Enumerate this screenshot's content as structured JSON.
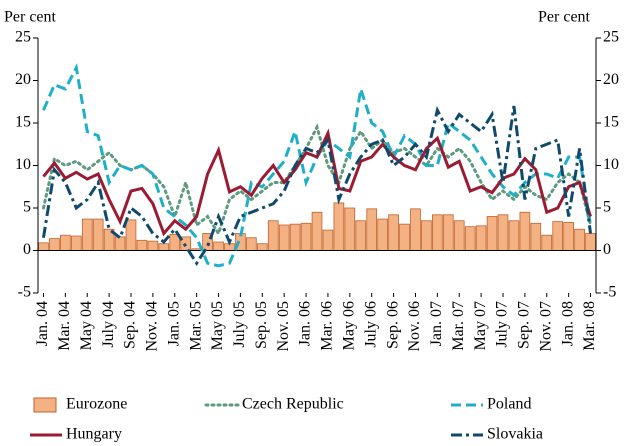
{
  "chart_data": {
    "type": "combo",
    "y_label": "Per cent",
    "y2_label": "Per cent",
    "categories": [
      "Jan. 04",
      null,
      "Mar. 04",
      null,
      "May 04",
      null,
      "July 04",
      null,
      "Sep. 04",
      null,
      "Nov. 04",
      null,
      "Jan. 05",
      null,
      "Mar. 05",
      null,
      "May 05",
      null,
      "July 05",
      null,
      "Sep. 05",
      null,
      "Nov. 05",
      null,
      "Jan. 06",
      null,
      "Mar. 06",
      null,
      "May 06",
      null,
      "July 06",
      null,
      "Sep. 06",
      null,
      "Nov. 06",
      null,
      "Jan. 07",
      null,
      "Mar. 07",
      null,
      "May 07",
      null,
      "July 07",
      null,
      "Sep. 07",
      null,
      "Nov. 07",
      null,
      "Jan. 08",
      null,
      "Mar. 08"
    ],
    "ylim": [
      -5,
      25
    ],
    "yticks": [
      -5,
      0,
      5,
      10,
      15,
      20,
      25
    ],
    "y2lim": [
      -5,
      25
    ],
    "y2ticks": [
      -5,
      0,
      5,
      10,
      15,
      20,
      25
    ],
    "series": [
      {
        "name": "Eurozone",
        "type": "bar",
        "color": "#f4b183",
        "edge_color": "#c0622a",
        "values": [
          0.9,
          1.4,
          1.8,
          1.7,
          3.7,
          3.7,
          2.5,
          1.6,
          3.6,
          1.2,
          1.1,
          0.8,
          1.9,
          1.6,
          0.2,
          2.0,
          1.0,
          0.8,
          2.0,
          1.5,
          0.8,
          3.5,
          3.0,
          3.1,
          3.2,
          4.5,
          2.4,
          5.6,
          5.0,
          3.5,
          4.9,
          3.7,
          4.2,
          3.1,
          4.9,
          3.5,
          4.2,
          4.2,
          3.5,
          2.8,
          2.9,
          4.0,
          4.2,
          3.5,
          4.5,
          3.2,
          1.8,
          3.4,
          3.3,
          2.5,
          2.0
        ]
      },
      {
        "name": "Czech Republic",
        "type": "line",
        "style": "dotted",
        "color": "#5e9a7e",
        "values": [
          5,
          10.8,
          10,
          10.5,
          9.5,
          10.5,
          11.5,
          10,
          9.5,
          10,
          9,
          7.5,
          4,
          8,
          3,
          4,
          2,
          6,
          7,
          6,
          7,
          8,
          8,
          10,
          12,
          14.5,
          10,
          8,
          12,
          14,
          12,
          13,
          11.5,
          12,
          11,
          10,
          12,
          11,
          12,
          10.5,
          8,
          6,
          7,
          6,
          7.5,
          6.5,
          6,
          8,
          9,
          8,
          3
        ]
      },
      {
        "name": "Poland",
        "type": "line",
        "style": "dashed",
        "color": "#1eb0c9",
        "values": [
          16.5,
          19.5,
          19,
          21.5,
          14,
          13.5,
          8,
          10,
          9.5,
          10,
          9,
          5,
          4,
          3,
          1.5,
          -1.5,
          -1.8,
          -1.5,
          1.5,
          8,
          7.5,
          9,
          10.5,
          14,
          8,
          11,
          13,
          12,
          11,
          19,
          15,
          14,
          11,
          13.5,
          12.5,
          10,
          10,
          15,
          14,
          13,
          11,
          9,
          7.5,
          6.5,
          8,
          9,
          9,
          8.5,
          11,
          11,
          3
        ]
      },
      {
        "name": "Hungary",
        "type": "line",
        "style": "solid",
        "color": "#9b1b32",
        "values": [
          8.7,
          10.3,
          8.5,
          9.2,
          8.4,
          9.0,
          6.0,
          3.4,
          7.0,
          7.3,
          5.5,
          2.0,
          3.5,
          2.5,
          4.0,
          9.0,
          11.8,
          6.9,
          7.5,
          6.5,
          8.5,
          10.0,
          8.0,
          9.5,
          11.5,
          11.0,
          13.8,
          7.3,
          7.0,
          10.5,
          11.0,
          12.5,
          11.0,
          10.0,
          9.5,
          12.0,
          13.2,
          9.8,
          10.5,
          7.0,
          7.5,
          6.8,
          8.5,
          9.0,
          10.8,
          9.5,
          4.5,
          5.0,
          7.5,
          8.0,
          4.0
        ]
      },
      {
        "name": "Slovakia",
        "type": "line",
        "style": "dashdot",
        "color": "#0f4a6c",
        "values": [
          1.5,
          9.5,
          8,
          5,
          6,
          8,
          2.5,
          1.5,
          5,
          4,
          2,
          1,
          2.5,
          0.5,
          -1.5,
          0.5,
          4,
          1,
          4,
          4.5,
          5,
          5.5,
          7,
          10,
          12,
          11.5,
          13,
          6,
          9,
          11,
          12.5,
          13,
          10,
          11,
          12.5,
          11,
          16.5,
          14,
          16,
          15,
          14,
          16,
          8,
          17,
          6,
          12,
          12.5,
          13,
          4,
          12,
          2
        ]
      }
    ]
  }
}
